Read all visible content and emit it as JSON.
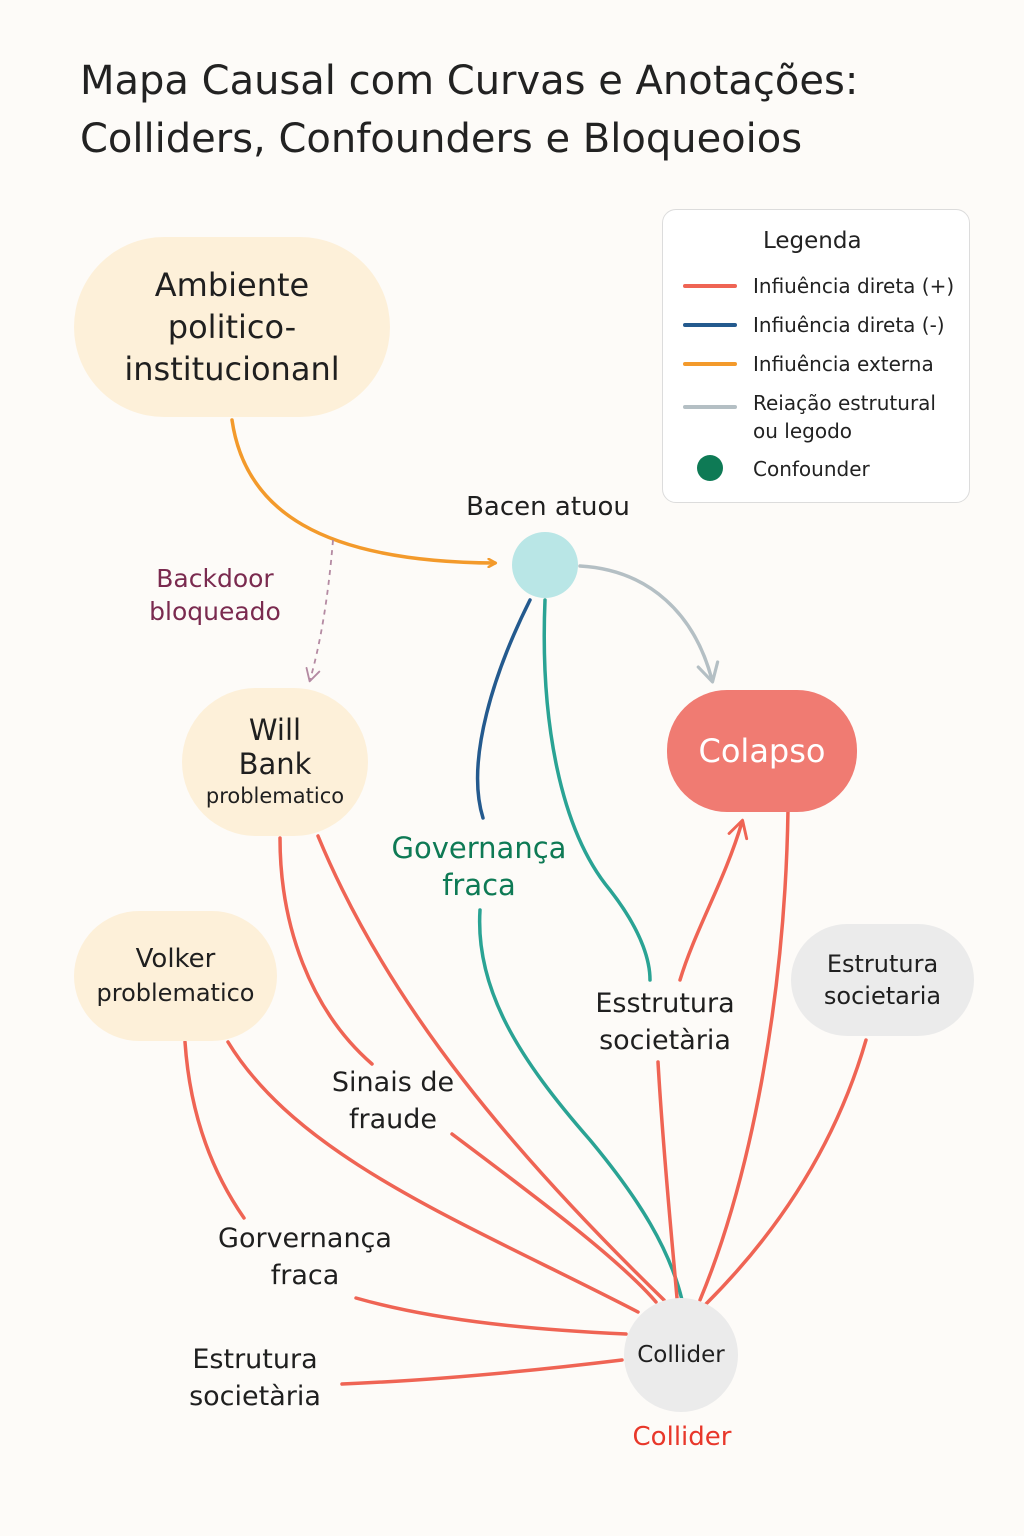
{
  "title": {
    "line1": "Mapa Causal com Curvas e Anotações:",
    "line2": "Colliders, Confounders e Bloqueoios"
  },
  "legend": {
    "title": "Legenda",
    "items": [
      {
        "label": "Infiuência direta (+)",
        "color": "#ef6454"
      },
      {
        "label": "Infiuência direta (-)",
        "color": "#245a8e"
      },
      {
        "label": "Infiuência externa",
        "color": "#f39a2b"
      },
      {
        "label": "Reiação estrutural\nou legodo",
        "color": "#b4bfc4"
      },
      {
        "label": "Confounder",
        "color": "#0e7a55"
      }
    ]
  },
  "nodes": {
    "ambiente": {
      "line1": "Ambiente",
      "line2": "politico-",
      "line3": "institucionanl"
    },
    "bacen": {
      "label": "Bacen atuou"
    },
    "will": {
      "line1": "Will",
      "line2": "Bank",
      "line3": "problematico"
    },
    "colapso": {
      "label": "Colapso"
    },
    "volker": {
      "line1": "Volker",
      "line2": "problematico"
    },
    "estrutura_right": {
      "line1": "Estrutura",
      "line2": "societaria"
    },
    "collider": {
      "label": "Collider"
    }
  },
  "labels": {
    "backdoor": {
      "line1": "Backdoor",
      "line2": "bloqueado"
    },
    "governanca_mid": {
      "line1": "Governança",
      "line2": "fraca"
    },
    "esstrutura": {
      "line1": "Esstrutura",
      "line2": "societària"
    },
    "sinais": {
      "line1": "Sinais de",
      "line2": "fraude"
    },
    "gorvernanca": {
      "line1": "Gorvernança",
      "line2": "fraca"
    },
    "estrutura_left": {
      "line1": "Estrutura",
      "line2": "societària"
    },
    "collider_caption": "Collider"
  },
  "colors": {
    "positive": "#ef6454",
    "negative": "#245a8e",
    "external": "#f39a2b",
    "structural": "#b4bfc4",
    "confounder_path": "#2aa394",
    "backdoor": "#7a2a4f",
    "collider_caption": "#e8372a",
    "governanca_text": "#0e7a55"
  }
}
